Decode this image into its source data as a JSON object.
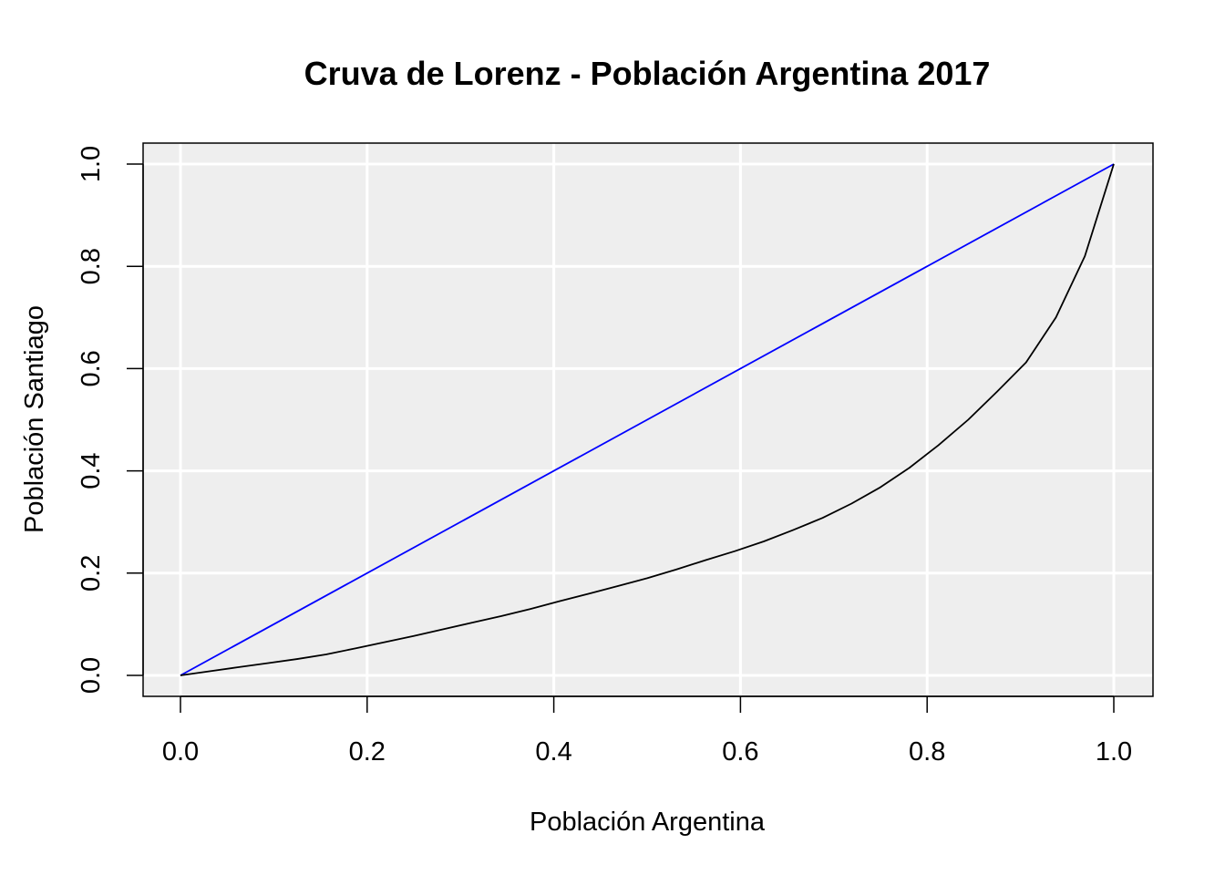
{
  "chart_data": {
    "type": "line",
    "title": "Cruva de Lorenz - Población Argentina 2017",
    "xlabel": "Población Argentina",
    "ylabel": "Población Santiago",
    "xlim": [
      0,
      1
    ],
    "ylim": [
      0,
      1
    ],
    "x_ticks": [
      "0.0",
      "0.2",
      "0.4",
      "0.6",
      "0.8",
      "1.0"
    ],
    "y_ticks": [
      "0.0",
      "0.2",
      "0.4",
      "0.6",
      "0.8",
      "1.0"
    ],
    "grid": true,
    "background": "#eeeeee",
    "series": [
      {
        "color": "#0000ff",
        "x": [
          0,
          1
        ],
        "y": [
          0,
          1
        ]
      },
      {
        "color": "#000000",
        "x": [
          0,
          0.031,
          0.062,
          0.094,
          0.125,
          0.156,
          0.188,
          0.219,
          0.25,
          0.281,
          0.312,
          0.344,
          0.375,
          0.406,
          0.438,
          0.469,
          0.5,
          0.531,
          0.562,
          0.594,
          0.625,
          0.656,
          0.688,
          0.719,
          0.75,
          0.781,
          0.812,
          0.844,
          0.875,
          0.906,
          0.938,
          0.969,
          1
        ],
        "y": [
          0,
          0.008,
          0.016,
          0.024,
          0.032,
          0.041,
          0.053,
          0.065,
          0.077,
          0.09,
          0.103,
          0.116,
          0.13,
          0.145,
          0.16,
          0.175,
          0.19,
          0.207,
          0.225,
          0.243,
          0.262,
          0.284,
          0.308,
          0.336,
          0.368,
          0.406,
          0.45,
          0.5,
          0.555,
          0.612,
          0.7,
          0.82,
          1
        ]
      }
    ]
  }
}
